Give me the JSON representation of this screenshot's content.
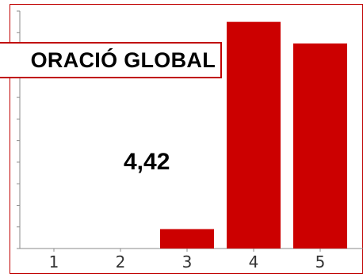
{
  "chart_data": {
    "type": "bar",
    "title": "ORACIÓ GLOBAL",
    "categories": [
      "1",
      "2",
      "3",
      "4",
      "5"
    ],
    "values": [
      0,
      0,
      4.5,
      52.5,
      47.5
    ],
    "ylim": [
      0,
      55
    ],
    "grid": false,
    "legend": "none",
    "annotation": "4,42"
  },
  "colors": {
    "bar": "#cc0000",
    "frame": "#c00000",
    "axis": "#8a8a8a",
    "text": "#000000"
  }
}
